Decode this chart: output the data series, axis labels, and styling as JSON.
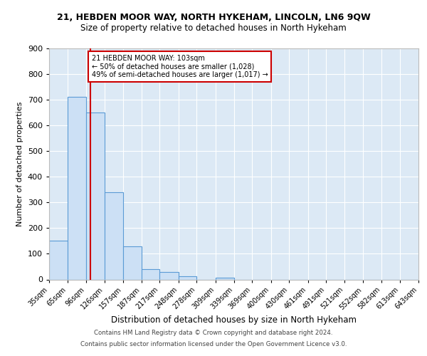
{
  "title_line1": "21, HEBDEN MOOR WAY, NORTH HYKEHAM, LINCOLN, LN6 9QW",
  "title_line2": "Size of property relative to detached houses in North Hykeham",
  "xlabel": "Distribution of detached houses by size in North Hykeham",
  "ylabel": "Number of detached properties",
  "footnote1": "Contains HM Land Registry data © Crown copyright and database right 2024.",
  "footnote2": "Contains public sector information licensed under the Open Government Licence v3.0.",
  "bin_edges": [
    35,
    65,
    96,
    126,
    157,
    187,
    217,
    248,
    278,
    309,
    339,
    369,
    400,
    430,
    461,
    491,
    521,
    552,
    582,
    613,
    643
  ],
  "bin_labels": [
    "35sqm",
    "65sqm",
    "96sqm",
    "126sqm",
    "157sqm",
    "187sqm",
    "217sqm",
    "248sqm",
    "278sqm",
    "309sqm",
    "339sqm",
    "369sqm",
    "400sqm",
    "430sqm",
    "461sqm",
    "491sqm",
    "521sqm",
    "552sqm",
    "582sqm",
    "613sqm",
    "643sqm"
  ],
  "counts": [
    150,
    710,
    650,
    340,
    130,
    40,
    30,
    12,
    0,
    8,
    0,
    0,
    0,
    0,
    0,
    0,
    0,
    0,
    0,
    0
  ],
  "bar_color": "#cce0f5",
  "bar_edge_color": "#5b9bd5",
  "property_line_x": 103,
  "property_line_color": "#cc0000",
  "annotation_text": "21 HEBDEN MOOR WAY: 103sqm\n← 50% of detached houses are smaller (1,028)\n49% of semi-detached houses are larger (1,017) →",
  "annotation_box_color": "#ffffff",
  "annotation_box_edge": "#cc0000",
  "ylim": [
    0,
    900
  ],
  "background_color": "#dce9f5",
  "fig_background": "#ffffff",
  "grid_color": "#ffffff",
  "title_fontsize": 9,
  "subtitle_fontsize": 8.5
}
